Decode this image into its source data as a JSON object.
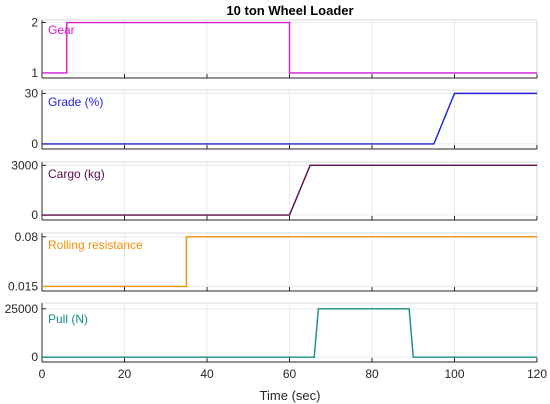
{
  "chart_data": {
    "type": "line",
    "title": "10 ton Wheel Loader",
    "xlabel": "Time (sec)",
    "xlim": [
      0,
      120
    ],
    "xticks": [
      0,
      20,
      40,
      60,
      80,
      100,
      120
    ],
    "grid": true,
    "subplots": [
      {
        "name": "Gear",
        "color": "#d11ecf",
        "ylim": [
          0.9,
          2.05
        ],
        "yticks": [
          1,
          2
        ],
        "x": [
          0,
          6,
          6,
          60,
          60,
          120
        ],
        "y": [
          1,
          1,
          2,
          2,
          1,
          1
        ]
      },
      {
        "name": "Grade (%)",
        "color": "#1f1fd6",
        "ylim": [
          -3,
          32
        ],
        "yticks": [
          0,
          30
        ],
        "x": [
          0,
          95,
          100,
          120
        ],
        "y": [
          0,
          0,
          30,
          30
        ]
      },
      {
        "name": "Cargo (kg)",
        "color": "#5a0a4a",
        "ylim": [
          -300,
          3200
        ],
        "yticks": [
          0,
          3000
        ],
        "x": [
          0,
          60,
          65,
          120
        ],
        "y": [
          0,
          0,
          3000,
          3000
        ]
      },
      {
        "name": "Rolling resistance",
        "color": "#f0900a",
        "ylim": [
          0.009,
          0.085
        ],
        "yticks": [
          0.015,
          0.08
        ],
        "x": [
          0,
          35,
          35,
          120
        ],
        "y": [
          0.015,
          0.015,
          0.08,
          0.08
        ]
      },
      {
        "name": "Pull (N)",
        "color": "#138f85",
        "ylim": [
          -2500,
          28000
        ],
        "yticks": [
          0,
          25000
        ],
        "x": [
          0,
          66,
          67,
          89,
          90,
          120
        ],
        "y": [
          0,
          0,
          25000,
          25000,
          0,
          0
        ]
      }
    ]
  }
}
